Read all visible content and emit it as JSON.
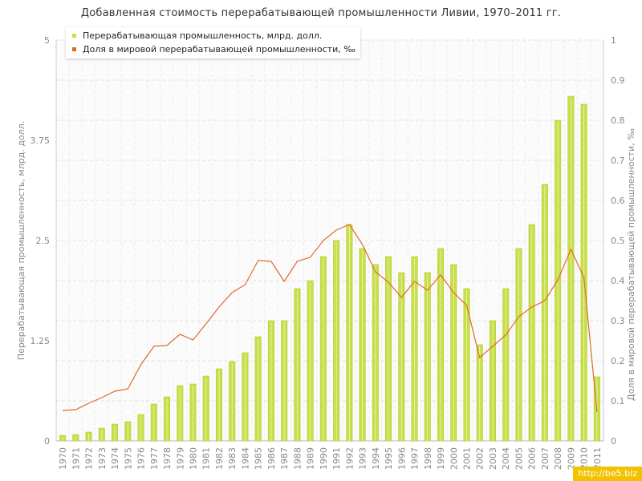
{
  "chart_data": {
    "type": "bar",
    "title": "Добавленная стоимость перерабатывающей промышленности Ливии, 1970–2011 гг.",
    "ylabel_left": "Перерабатывающая промышленность, млрд. долл.",
    "ylabel_right": "Доля в мировой перерабатывающей промышленности, ‰",
    "ylim_left": [
      0,
      5
    ],
    "ylim_right": [
      0,
      1
    ],
    "yticks_left": [
      "0",
      "1.25",
      "2.5",
      "3.75",
      "5"
    ],
    "yticks_right": [
      "0",
      "0.1",
      "0.2",
      "0.3",
      "0.4",
      "0.5",
      "0.6",
      "0.7",
      "0.8",
      "0.9",
      "1"
    ],
    "categories": [
      "1970",
      "1971",
      "1972",
      "1973",
      "1974",
      "1975",
      "1976",
      "1977",
      "1978",
      "1979",
      "1980",
      "1981",
      "1982",
      "1983",
      "1984",
      "1985",
      "1986",
      "1987",
      "1988",
      "1989",
      "1990",
      "1991",
      "1992",
      "1993",
      "1994",
      "1995",
      "1996",
      "1997",
      "1998",
      "1999",
      "2000",
      "2001",
      "2002",
      "2003",
      "2004",
      "2005",
      "2006",
      "2007",
      "2008",
      "2009",
      "2010",
      "2011"
    ],
    "series": [
      {
        "name": "Перерабатывающая промышленность, млрд. долл.",
        "kind": "bar",
        "axis": "left",
        "color": "#c8de4a",
        "values": [
          0.07,
          0.08,
          0.11,
          0.16,
          0.21,
          0.24,
          0.33,
          0.46,
          0.55,
          0.69,
          0.71,
          0.81,
          0.9,
          0.99,
          1.1,
          1.3,
          1.5,
          1.5,
          1.9,
          2.0,
          2.3,
          2.5,
          2.7,
          2.4,
          2.2,
          2.3,
          2.1,
          2.3,
          2.1,
          2.4,
          2.2,
          1.9,
          1.2,
          1.5,
          1.9,
          2.4,
          2.7,
          3.2,
          4.0,
          4.3,
          4.2,
          0.8
        ]
      },
      {
        "name": "Доля в мировой перерабатывающей промышленности, ‰",
        "kind": "line",
        "axis": "right",
        "color": "#e06a2c",
        "values": [
          0.076,
          0.078,
          0.094,
          0.108,
          0.124,
          0.13,
          0.19,
          0.236,
          0.238,
          0.266,
          0.252,
          0.292,
          0.334,
          0.37,
          0.39,
          0.45,
          0.448,
          0.398,
          0.448,
          0.458,
          0.5,
          0.526,
          0.54,
          0.49,
          0.422,
          0.396,
          0.358,
          0.398,
          0.376,
          0.414,
          0.37,
          0.338,
          0.208,
          0.236,
          0.264,
          0.31,
          0.334,
          0.35,
          0.402,
          0.478,
          0.408,
          0.072
        ]
      }
    ],
    "legend_position": "top-left",
    "grid": true
  },
  "watermark": "http://be5.biz"
}
